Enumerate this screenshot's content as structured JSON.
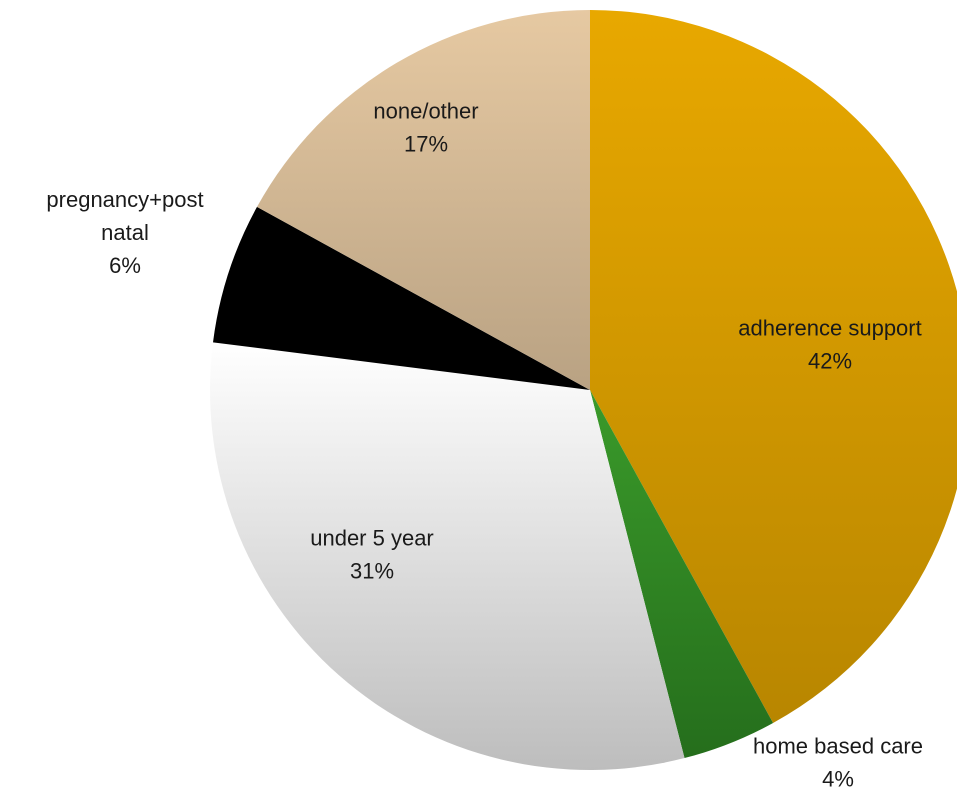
{
  "chart_data": {
    "type": "pie",
    "slices": [
      {
        "label": "adherence support",
        "pct_label": "42%",
        "value": 42,
        "color_top": "#e8a800",
        "color_bottom": "#b88600"
      },
      {
        "label": "home based care",
        "pct_label": "4%",
        "value": 4,
        "color_top": "#3a9a2a",
        "color_bottom": "#256e1c"
      },
      {
        "label": "under 5 year",
        "pct_label": "31%",
        "value": 31,
        "color_top": "#ffffff",
        "color_bottom": "#bdbdbd"
      },
      {
        "label": "pregnancy+post natal",
        "label_lines": [
          "pregnancy+post",
          "natal"
        ],
        "pct_label": "6%",
        "value": 6,
        "color_top": "#000000",
        "color_bottom": "#000000"
      },
      {
        "label": "none/other",
        "pct_label": "17%",
        "value": 17,
        "color_top": "#e6c9a2",
        "color_bottom": "#b9a283"
      }
    ]
  }
}
